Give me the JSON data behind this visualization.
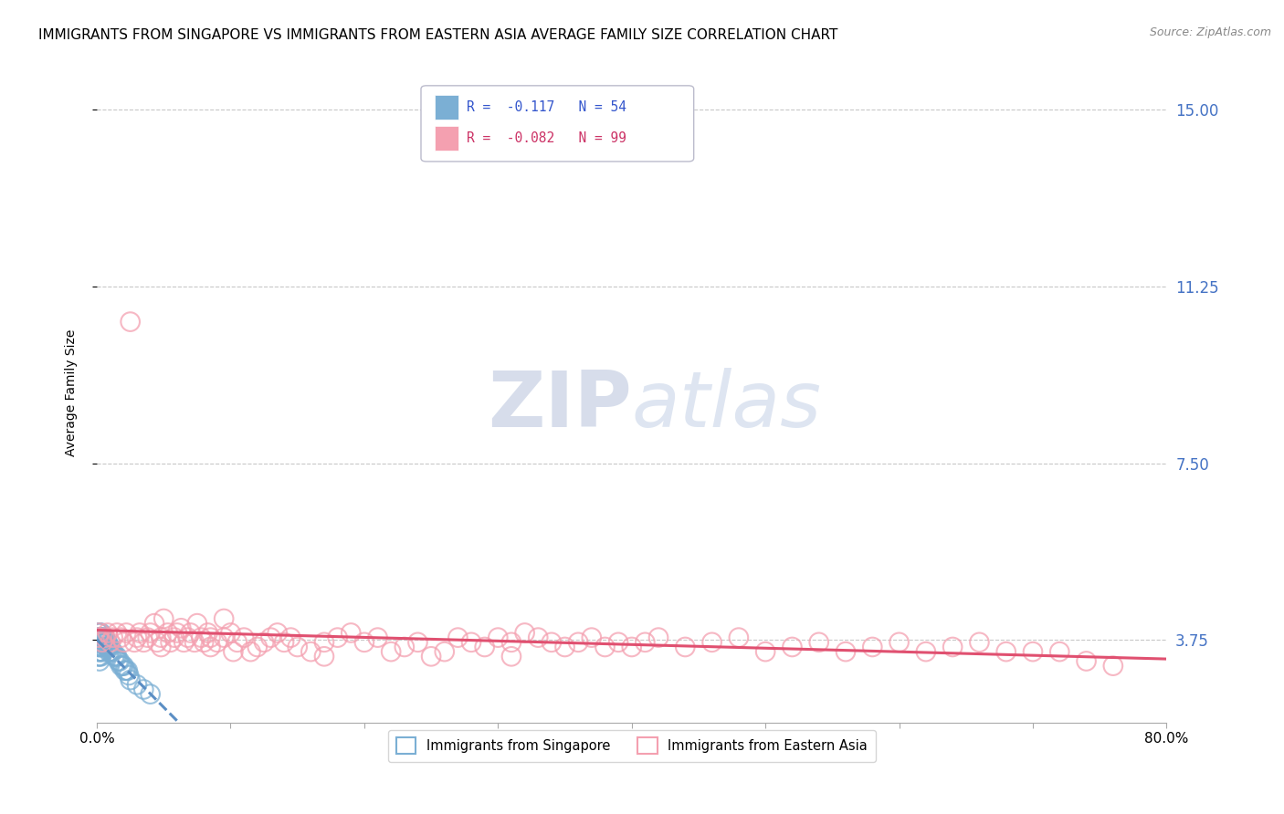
{
  "title": "IMMIGRANTS FROM SINGAPORE VS IMMIGRANTS FROM EASTERN ASIA AVERAGE FAMILY SIZE CORRELATION CHART",
  "source": "Source: ZipAtlas.com",
  "ylabel": "Average Family Size",
  "yticks_right": [
    3.75,
    7.5,
    11.25,
    15.0
  ],
  "ytick_color": "#4472c4",
  "background_color": "#ffffff",
  "grid_color": "#c8c8c8",
  "watermark_zip": "ZIP",
  "watermark_atlas": "atlas",
  "series": [
    {
      "label": "Immigrants from Singapore",
      "R": -0.117,
      "N": 54,
      "color_scatter": "#7bafd4",
      "color_line": "#5b8ec4",
      "line_style": "--",
      "x_values": [
        0.001,
        0.001,
        0.001,
        0.001,
        0.001,
        0.001,
        0.002,
        0.002,
        0.002,
        0.002,
        0.002,
        0.002,
        0.002,
        0.003,
        0.003,
        0.003,
        0.003,
        0.003,
        0.003,
        0.004,
        0.004,
        0.004,
        0.004,
        0.005,
        0.005,
        0.005,
        0.006,
        0.006,
        0.007,
        0.007,
        0.008,
        0.008,
        0.009,
        0.009,
        0.01,
        0.01,
        0.011,
        0.012,
        0.013,
        0.014,
        0.015,
        0.016,
        0.017,
        0.018,
        0.019,
        0.02,
        0.021,
        0.022,
        0.023,
        0.024,
        0.025,
        0.03,
        0.035,
        0.04
      ],
      "y_values": [
        3.9,
        3.8,
        3.7,
        3.6,
        3.5,
        3.4,
        3.9,
        3.8,
        3.7,
        3.6,
        3.5,
        3.4,
        3.3,
        3.9,
        3.8,
        3.7,
        3.6,
        3.5,
        3.4,
        3.8,
        3.7,
        3.6,
        3.5,
        3.8,
        3.7,
        3.6,
        3.8,
        3.7,
        3.7,
        3.6,
        3.7,
        3.6,
        3.6,
        3.5,
        3.6,
        3.5,
        3.5,
        3.5,
        3.4,
        3.4,
        3.4,
        3.3,
        3.3,
        3.2,
        3.2,
        3.2,
        3.1,
        3.1,
        3.1,
        3.0,
        2.9,
        2.8,
        2.7,
        2.6
      ]
    },
    {
      "label": "Immigrants from Eastern Asia",
      "R": -0.082,
      "N": 99,
      "color_scatter": "#f4a0b0",
      "color_line": "#e05070",
      "line_style": "-",
      "x_values": [
        0.001,
        0.002,
        0.004,
        0.006,
        0.008,
        0.01,
        0.012,
        0.015,
        0.018,
        0.02,
        0.022,
        0.025,
        0.028,
        0.03,
        0.032,
        0.035,
        0.038,
        0.04,
        0.043,
        0.045,
        0.048,
        0.05,
        0.053,
        0.055,
        0.058,
        0.06,
        0.063,
        0.065,
        0.068,
        0.07,
        0.073,
        0.075,
        0.078,
        0.08,
        0.083,
        0.085,
        0.09,
        0.095,
        0.1,
        0.105,
        0.11,
        0.115,
        0.12,
        0.125,
        0.13,
        0.135,
        0.14,
        0.145,
        0.15,
        0.16,
        0.17,
        0.18,
        0.19,
        0.2,
        0.21,
        0.22,
        0.23,
        0.24,
        0.25,
        0.26,
        0.27,
        0.28,
        0.29,
        0.3,
        0.31,
        0.32,
        0.33,
        0.34,
        0.35,
        0.36,
        0.37,
        0.38,
        0.39,
        0.4,
        0.41,
        0.42,
        0.44,
        0.46,
        0.48,
        0.5,
        0.52,
        0.54,
        0.56,
        0.58,
        0.6,
        0.62,
        0.64,
        0.66,
        0.68,
        0.7,
        0.72,
        0.74,
        0.095,
        0.048,
        0.102,
        0.085,
        0.17,
        0.31,
        0.76
      ],
      "y_values": [
        3.8,
        3.9,
        3.7,
        3.8,
        3.9,
        3.7,
        3.8,
        3.9,
        3.8,
        3.7,
        3.9,
        10.5,
        3.7,
        3.8,
        3.9,
        3.7,
        3.8,
        3.9,
        4.1,
        3.7,
        3.8,
        4.2,
        3.9,
        3.7,
        3.8,
        3.9,
        4.0,
        3.7,
        3.8,
        3.9,
        3.7,
        4.1,
        3.8,
        3.7,
        3.9,
        3.8,
        3.7,
        3.8,
        3.9,
        3.7,
        3.8,
        3.5,
        3.6,
        3.7,
        3.8,
        3.9,
        3.7,
        3.8,
        3.6,
        3.5,
        3.7,
        3.8,
        3.9,
        3.7,
        3.8,
        3.5,
        3.6,
        3.7,
        3.4,
        3.5,
        3.8,
        3.7,
        3.6,
        3.8,
        3.7,
        3.9,
        3.8,
        3.7,
        3.6,
        3.7,
        3.8,
        3.6,
        3.7,
        3.6,
        3.7,
        3.8,
        3.6,
        3.7,
        3.8,
        3.5,
        3.6,
        3.7,
        3.5,
        3.6,
        3.7,
        3.5,
        3.6,
        3.7,
        3.5,
        3.5,
        3.5,
        3.3,
        4.2,
        3.6,
        3.5,
        3.6,
        3.4,
        3.4,
        3.2
      ]
    }
  ],
  "xlim": [
    0.0,
    0.8
  ],
  "ylim": [
    2.0,
    16.0
  ],
  "title_fontsize": 11,
  "axis_label_fontsize": 10,
  "tick_fontsize": 11,
  "source_fontsize": 9,
  "legend_R_color_blue": "#3355cc",
  "legend_R_color_pink": "#cc3366",
  "legend_N_color": "#3355cc"
}
